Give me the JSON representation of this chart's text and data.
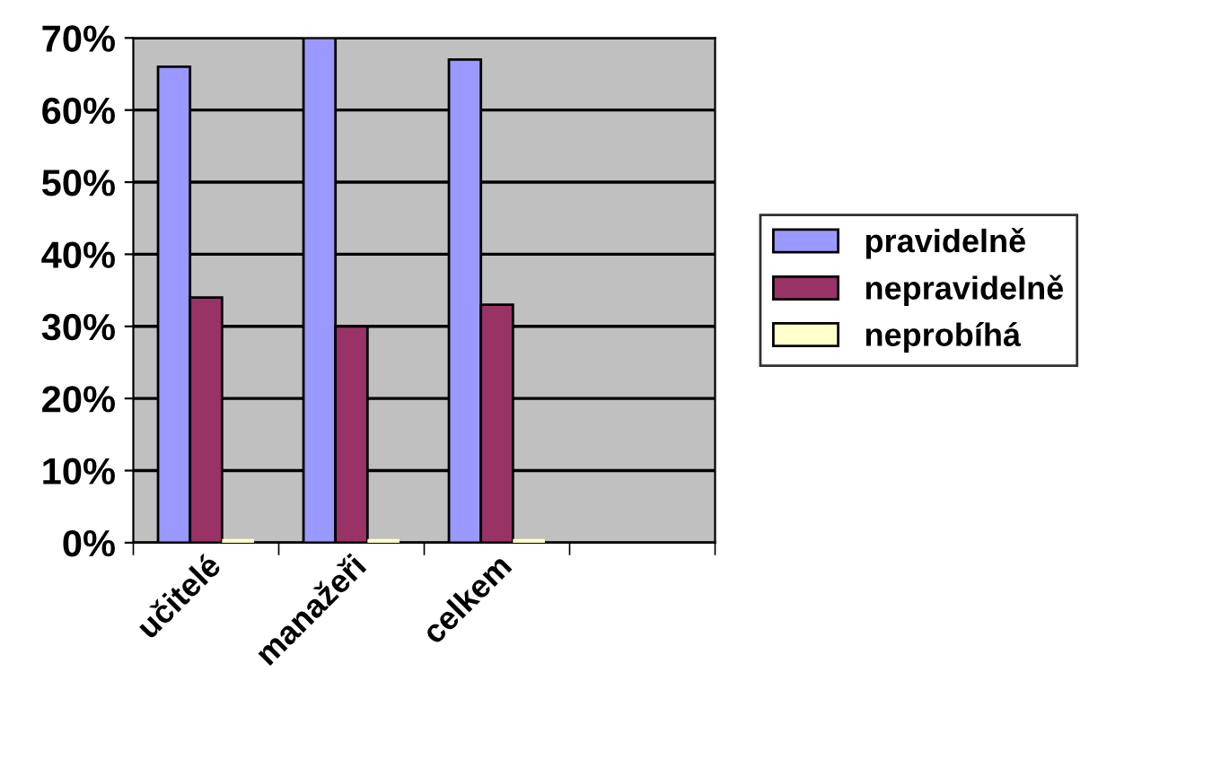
{
  "chart_data": {
    "type": "bar",
    "categories": [
      "učitelé",
      "manažeři",
      "celkem",
      null
    ],
    "series": [
      {
        "name": "pravidelně",
        "color": "#9999ff",
        "values": [
          66,
          70,
          67,
          null
        ]
      },
      {
        "name": "nepravidelně",
        "color": "#993366",
        "values": [
          34,
          30,
          33,
          null
        ]
      },
      {
        "name": "neprobíhá",
        "color": "#ffffcc",
        "values": [
          0,
          0,
          0,
          null
        ]
      }
    ],
    "ylim": [
      0,
      70
    ],
    "yticks": [
      {
        "value": 0,
        "label": "0%"
      },
      {
        "value": 10,
        "label": "10%"
      },
      {
        "value": 20,
        "label": "20%"
      },
      {
        "value": 30,
        "label": "30%"
      },
      {
        "value": 40,
        "label": "40%"
      },
      {
        "value": 50,
        "label": "50%"
      },
      {
        "value": 60,
        "label": "60%"
      },
      {
        "value": 70,
        "label": "70%"
      }
    ],
    "grid": "y",
    "legend": "right"
  }
}
